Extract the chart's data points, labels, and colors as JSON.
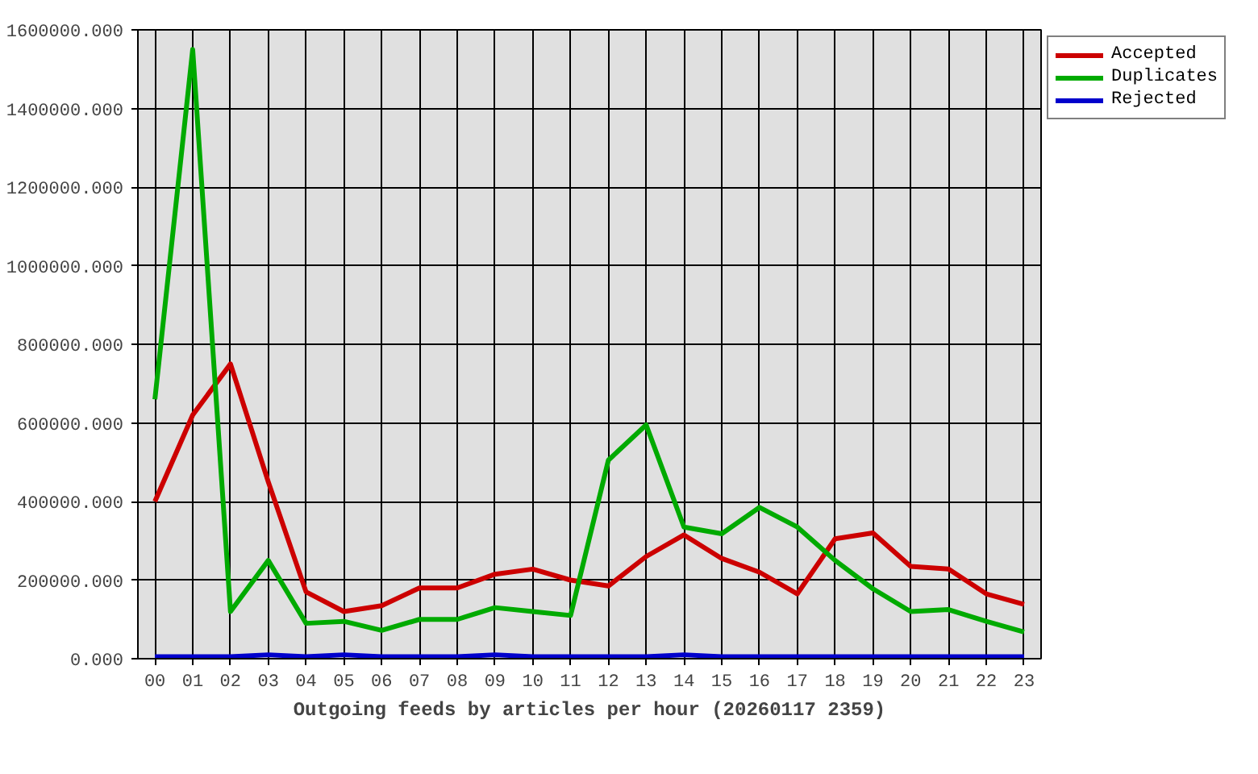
{
  "chart_data": {
    "type": "line",
    "xlabel": "Outgoing feeds by articles per hour (20260117 2359)",
    "categories": [
      "00",
      "01",
      "02",
      "03",
      "04",
      "05",
      "06",
      "07",
      "08",
      "09",
      "10",
      "11",
      "12",
      "13",
      "14",
      "15",
      "16",
      "17",
      "18",
      "19",
      "20",
      "21",
      "22",
      "23"
    ],
    "series": [
      {
        "name": "Accepted",
        "color": "#cc0000",
        "values": [
          400000,
          620000,
          750000,
          450000,
          170000,
          120000,
          135000,
          180000,
          180000,
          215000,
          228000,
          200000,
          185000,
          260000,
          315000,
          255000,
          220000,
          165000,
          305000,
          320000,
          235000,
          228000,
          165000,
          138000
        ]
      },
      {
        "name": "Duplicates",
        "color": "#00aa00",
        "values": [
          660000,
          1550000,
          120000,
          250000,
          90000,
          95000,
          72000,
          100000,
          100000,
          130000,
          120000,
          110000,
          505000,
          595000,
          335000,
          318000,
          385000,
          335000,
          250000,
          178000,
          120000,
          125000,
          95000,
          68000
        ]
      },
      {
        "name": "Rejected",
        "color": "#0000cc",
        "values": [
          5000,
          5000,
          5000,
          10000,
          5000,
          10000,
          5000,
          5000,
          5000,
          10000,
          5000,
          5000,
          5000,
          5000,
          10000,
          5000,
          5000,
          5000,
          5000,
          5000,
          5000,
          5000,
          5000,
          5000
        ]
      }
    ],
    "ylim": [
      0,
      1600000
    ],
    "yticks": [
      {
        "value": 0,
        "label": "0.000"
      },
      {
        "value": 200000,
        "label": "200000.000"
      },
      {
        "value": 400000,
        "label": "400000.000"
      },
      {
        "value": 600000,
        "label": "600000.000"
      },
      {
        "value": 800000,
        "label": "800000.000"
      },
      {
        "value": 1000000,
        "label": "1000000.000"
      },
      {
        "value": 1200000,
        "label": "1200000.000"
      },
      {
        "value": 1400000,
        "label": "1400000.000"
      },
      {
        "value": 1600000,
        "label": "1600000.000"
      }
    ],
    "grid": true,
    "legend": "top right"
  }
}
